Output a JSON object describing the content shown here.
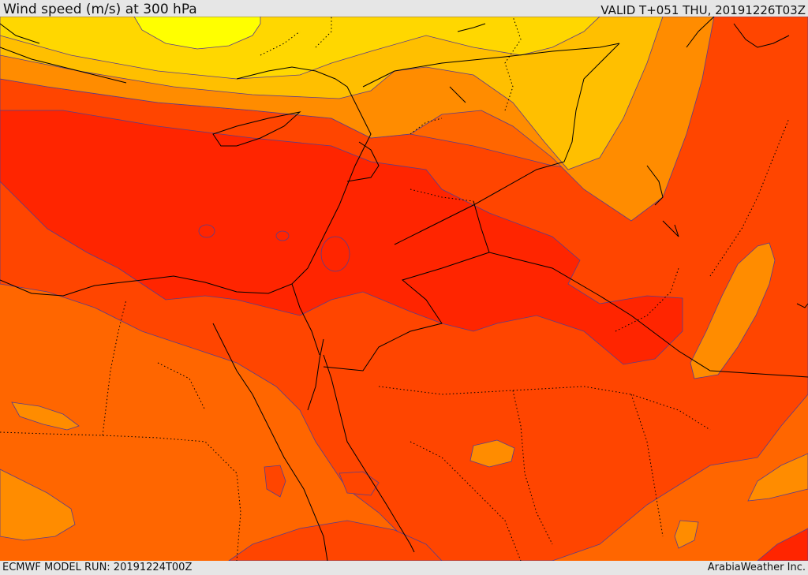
{
  "header": {
    "title": "Wind speed (m/s) at 300 hPa",
    "valid_time": "VALID T+051 THU, 20191226T03Z"
  },
  "footer": {
    "model_run": "ECMWF MODEL RUN: 20191224T00Z",
    "credit": "ArabiaWeather Inc."
  },
  "map": {
    "variable": "wind speed",
    "level": "300 hPa",
    "units": "m/s",
    "colors": {
      "yellow": "#ffff00",
      "gold": "#ffd700",
      "amber": "#ffbf00",
      "orange": "#ff8c00",
      "dark_orange": "#ff6600",
      "red_orange": "#ff4500",
      "red": "#ff2500",
      "contour": "#5a3d8a",
      "border": "#000000"
    }
  }
}
